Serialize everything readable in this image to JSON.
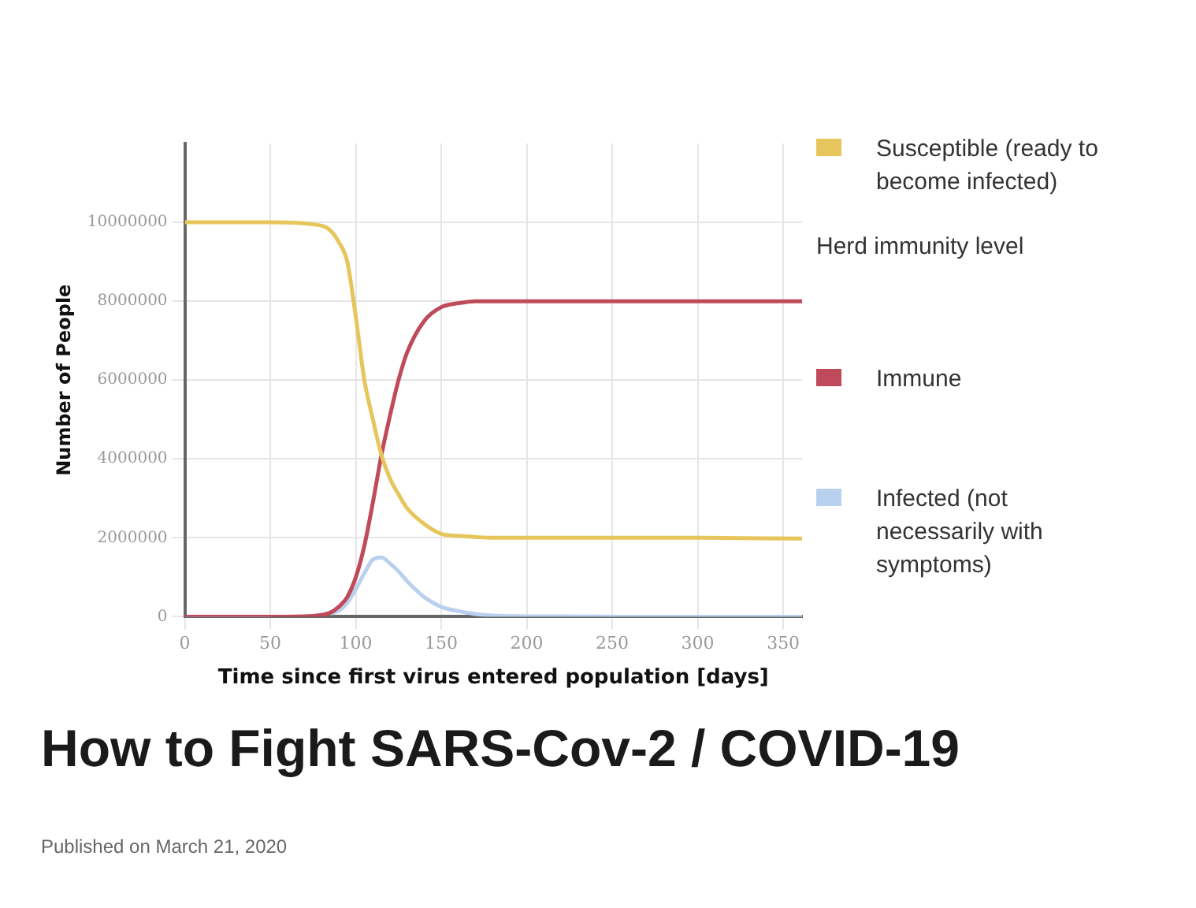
{
  "chart_data": {
    "type": "line",
    "title": "How to Fight SARS-Cov-2 / COVID-19",
    "xlabel": "Time since first virus entered population [days]",
    "ylabel": "Number of People",
    "x": [
      0,
      50,
      75,
      85,
      90,
      95,
      100,
      105,
      110,
      115,
      120,
      125,
      130,
      140,
      150,
      160,
      170,
      180,
      200,
      250,
      300,
      361
    ],
    "series": [
      {
        "name": "Susceptible (ready to become infected)",
        "color": "#e6c65c",
        "values": [
          10000000,
          10000000,
          9950000,
          9800000,
          9500000,
          9000000,
          7600000,
          6000000,
          5000000,
          4100000,
          3500000,
          3100000,
          2750000,
          2350000,
          2100000,
          2050000,
          2020000,
          2000000,
          2000000,
          2000000,
          2000000,
          1980000
        ]
      },
      {
        "name": "Immune",
        "color": "#c04a5a",
        "values": [
          0,
          0,
          20000,
          100000,
          250000,
          500000,
          1000000,
          1800000,
          2900000,
          4100000,
          5100000,
          6000000,
          6700000,
          7500000,
          7850000,
          7950000,
          8000000,
          8000000,
          8000000,
          8000000,
          8000000,
          8000000
        ]
      },
      {
        "name": "Infected (not necessarily with symptoms)",
        "color": "#b9d1ee",
        "values": [
          0,
          0,
          null,
          80000,
          150000,
          350000,
          700000,
          1100000,
          1450000,
          1500000,
          1350000,
          1150000,
          900000,
          500000,
          250000,
          140000,
          70000,
          30000,
          10000,
          0,
          0,
          0
        ]
      }
    ],
    "xlim": [
      0,
      361
    ],
    "xticks": [
      0,
      50,
      100,
      150,
      200,
      250,
      300,
      350
    ],
    "ylim": [
      0,
      12000000
    ],
    "yticks": [
      0,
      2000000,
      4000000,
      6000000,
      8000000,
      10000000
    ],
    "grid": true,
    "legend": "right",
    "marker": "none",
    "line_style": "solid",
    "annotations": [
      "Herd immunity level",
      "Published on March 21, 2020"
    ]
  }
}
